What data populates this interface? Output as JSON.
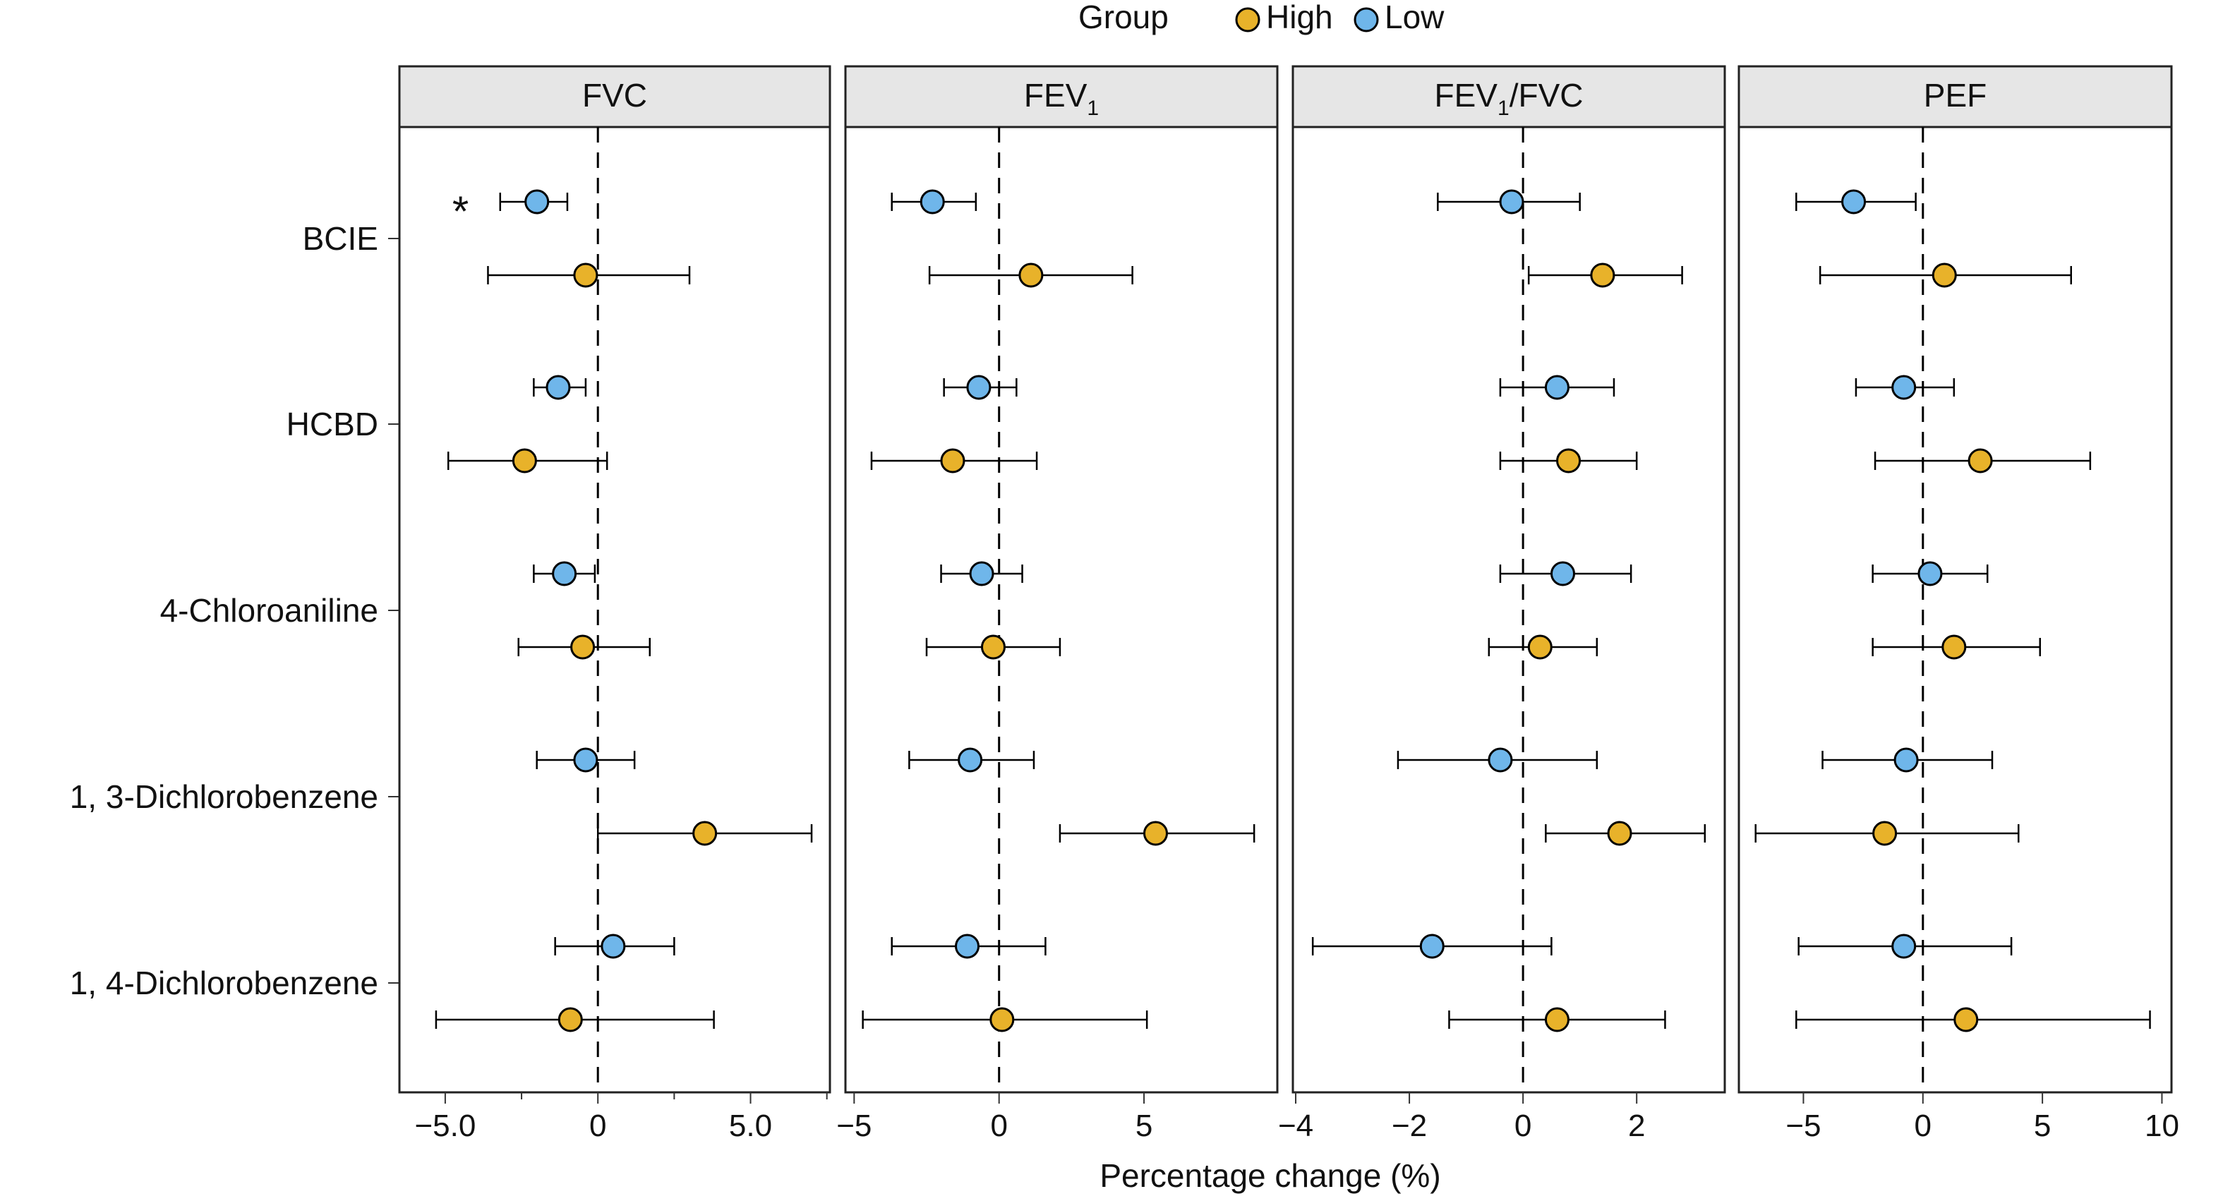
{
  "chart_data": {
    "type": "scatter",
    "subtype": "forest-plot-facets",
    "xlabel": "Percentage change (%)",
    "legend": {
      "title": "Group",
      "position": "top",
      "entries": [
        {
          "name": "High",
          "color": "#E8B22A"
        },
        {
          "name": "Low",
          "color": "#6FB6EA"
        }
      ]
    },
    "categories": [
      "BCIE",
      "HCBD",
      "4-Chloroaniline",
      "1, 3-Dichlorobenzene",
      "1, 4-Dichlorobenzene"
    ],
    "reference_line": 0,
    "panels": [
      {
        "title": "FVC",
        "title_sub": "",
        "title_suffix": "",
        "xlim": [
          -6.5,
          7.6
        ],
        "ticks": [
          -5,
          0,
          5
        ],
        "tick_labels": [
          "−5.0",
          "0",
          "5.0"
        ],
        "minor_ticks": [
          -2.5,
          2.5,
          7.5
        ],
        "annotations": [
          {
            "text": "*",
            "category": "BCIE",
            "group": "Low",
            "x": -4.5
          }
        ],
        "series": [
          {
            "name": "Low",
            "category": "BCIE",
            "est": -2.0,
            "lo": -3.2,
            "hi": -1.0
          },
          {
            "name": "High",
            "category": "BCIE",
            "est": -0.4,
            "lo": -3.6,
            "hi": 3.0
          },
          {
            "name": "Low",
            "category": "HCBD",
            "est": -1.3,
            "lo": -2.1,
            "hi": -0.4
          },
          {
            "name": "High",
            "category": "HCBD",
            "est": -2.4,
            "lo": -4.9,
            "hi": 0.3
          },
          {
            "name": "Low",
            "category": "4-Chloroaniline",
            "est": -1.1,
            "lo": -2.1,
            "hi": -0.1
          },
          {
            "name": "High",
            "category": "4-Chloroaniline",
            "est": -0.5,
            "lo": -2.6,
            "hi": 1.7
          },
          {
            "name": "Low",
            "category": "1, 3-Dichlorobenzene",
            "est": -0.4,
            "lo": -2.0,
            "hi": 1.2
          },
          {
            "name": "High",
            "category": "1, 3-Dichlorobenzene",
            "est": 3.5,
            "lo": 0.0,
            "hi": 7.0
          },
          {
            "name": "Low",
            "category": "1, 4-Dichlorobenzene",
            "est": 0.5,
            "lo": -1.4,
            "hi": 2.5
          },
          {
            "name": "High",
            "category": "1, 4-Dichlorobenzene",
            "est": -0.9,
            "lo": -5.3,
            "hi": 3.8
          }
        ]
      },
      {
        "title": "FEV",
        "title_sub": "1",
        "title_suffix": "",
        "xlim": [
          -5.3,
          9.6
        ],
        "ticks": [
          -5,
          0,
          5
        ],
        "tick_labels": [
          "−5",
          "0",
          "5"
        ],
        "minor_ticks": [],
        "annotations": [],
        "series": [
          {
            "name": "Low",
            "category": "BCIE",
            "est": -2.3,
            "lo": -3.7,
            "hi": -0.8
          },
          {
            "name": "High",
            "category": "BCIE",
            "est": 1.1,
            "lo": -2.4,
            "hi": 4.6
          },
          {
            "name": "Low",
            "category": "HCBD",
            "est": -0.7,
            "lo": -1.9,
            "hi": 0.6
          },
          {
            "name": "High",
            "category": "HCBD",
            "est": -1.6,
            "lo": -4.4,
            "hi": 1.3
          },
          {
            "name": "Low",
            "category": "4-Chloroaniline",
            "est": -0.6,
            "lo": -2.0,
            "hi": 0.8
          },
          {
            "name": "High",
            "category": "4-Chloroaniline",
            "est": -0.2,
            "lo": -2.5,
            "hi": 2.1
          },
          {
            "name": "Low",
            "category": "1, 3-Dichlorobenzene",
            "est": -1.0,
            "lo": -3.1,
            "hi": 1.2
          },
          {
            "name": "High",
            "category": "1, 3-Dichlorobenzene",
            "est": 5.4,
            "lo": 2.1,
            "hi": 8.8
          },
          {
            "name": "Low",
            "category": "1, 4-Dichlorobenzene",
            "est": -1.1,
            "lo": -3.7,
            "hi": 1.6
          },
          {
            "name": "High",
            "category": "1, 4-Dichlorobenzene",
            "est": 0.1,
            "lo": -4.7,
            "hi": 5.1
          }
        ]
      },
      {
        "title": "FEV",
        "title_sub": "1",
        "title_suffix": "/FVC",
        "xlim": [
          -4.05,
          3.55
        ],
        "ticks": [
          -4,
          -2,
          0,
          2
        ],
        "tick_labels": [
          "−4",
          "−2",
          "0",
          "2"
        ],
        "minor_ticks": [],
        "annotations": [],
        "series": [
          {
            "name": "Low",
            "category": "BCIE",
            "est": -0.2,
            "lo": -1.5,
            "hi": 1.0
          },
          {
            "name": "High",
            "category": "BCIE",
            "est": 1.4,
            "lo": 0.1,
            "hi": 2.8
          },
          {
            "name": "Low",
            "category": "HCBD",
            "est": 0.6,
            "lo": -0.4,
            "hi": 1.6
          },
          {
            "name": "High",
            "category": "HCBD",
            "est": 0.8,
            "lo": -0.4,
            "hi": 2.0
          },
          {
            "name": "Low",
            "category": "4-Chloroaniline",
            "est": 0.7,
            "lo": -0.4,
            "hi": 1.9
          },
          {
            "name": "High",
            "category": "4-Chloroaniline",
            "est": 0.3,
            "lo": -0.6,
            "hi": 1.3
          },
          {
            "name": "Low",
            "category": "1, 3-Dichlorobenzene",
            "est": -0.4,
            "lo": -2.2,
            "hi": 1.3
          },
          {
            "name": "High",
            "category": "1, 3-Dichlorobenzene",
            "est": 1.7,
            "lo": 0.4,
            "hi": 3.2
          },
          {
            "name": "Low",
            "category": "1, 4-Dichlorobenzene",
            "est": -1.6,
            "lo": -3.7,
            "hi": 0.5
          },
          {
            "name": "High",
            "category": "1, 4-Dichlorobenzene",
            "est": 0.6,
            "lo": -1.3,
            "hi": 2.5
          }
        ]
      },
      {
        "title": "PEF",
        "title_sub": "",
        "title_suffix": "",
        "xlim": [
          -7.7,
          10.4
        ],
        "ticks": [
          -5,
          0,
          5,
          10
        ],
        "tick_labels": [
          "−5",
          "0",
          "5",
          "10"
        ],
        "minor_ticks": [],
        "annotations": [],
        "series": [
          {
            "name": "Low",
            "category": "BCIE",
            "est": -2.9,
            "lo": -5.3,
            "hi": -0.3
          },
          {
            "name": "High",
            "category": "BCIE",
            "est": 0.9,
            "lo": -4.3,
            "hi": 6.2
          },
          {
            "name": "Low",
            "category": "HCBD",
            "est": -0.8,
            "lo": -2.8,
            "hi": 1.3
          },
          {
            "name": "High",
            "category": "HCBD",
            "est": 2.4,
            "lo": -2.0,
            "hi": 7.0
          },
          {
            "name": "Low",
            "category": "4-Chloroaniline",
            "est": 0.3,
            "lo": -2.1,
            "hi": 2.7
          },
          {
            "name": "High",
            "category": "4-Chloroaniline",
            "est": 1.3,
            "lo": -2.1,
            "hi": 4.9
          },
          {
            "name": "Low",
            "category": "1, 3-Dichlorobenzene",
            "est": -0.7,
            "lo": -4.2,
            "hi": 2.9
          },
          {
            "name": "High",
            "category": "1, 3-Dichlorobenzene",
            "est": -1.6,
            "lo": -7.0,
            "hi": 4.0
          },
          {
            "name": "Low",
            "category": "1, 4-Dichlorobenzene",
            "est": -0.8,
            "lo": -5.2,
            "hi": 3.7
          },
          {
            "name": "High",
            "category": "1, 4-Dichlorobenzene",
            "est": 1.8,
            "lo": -5.3,
            "hi": 9.5
          }
        ]
      }
    ]
  }
}
